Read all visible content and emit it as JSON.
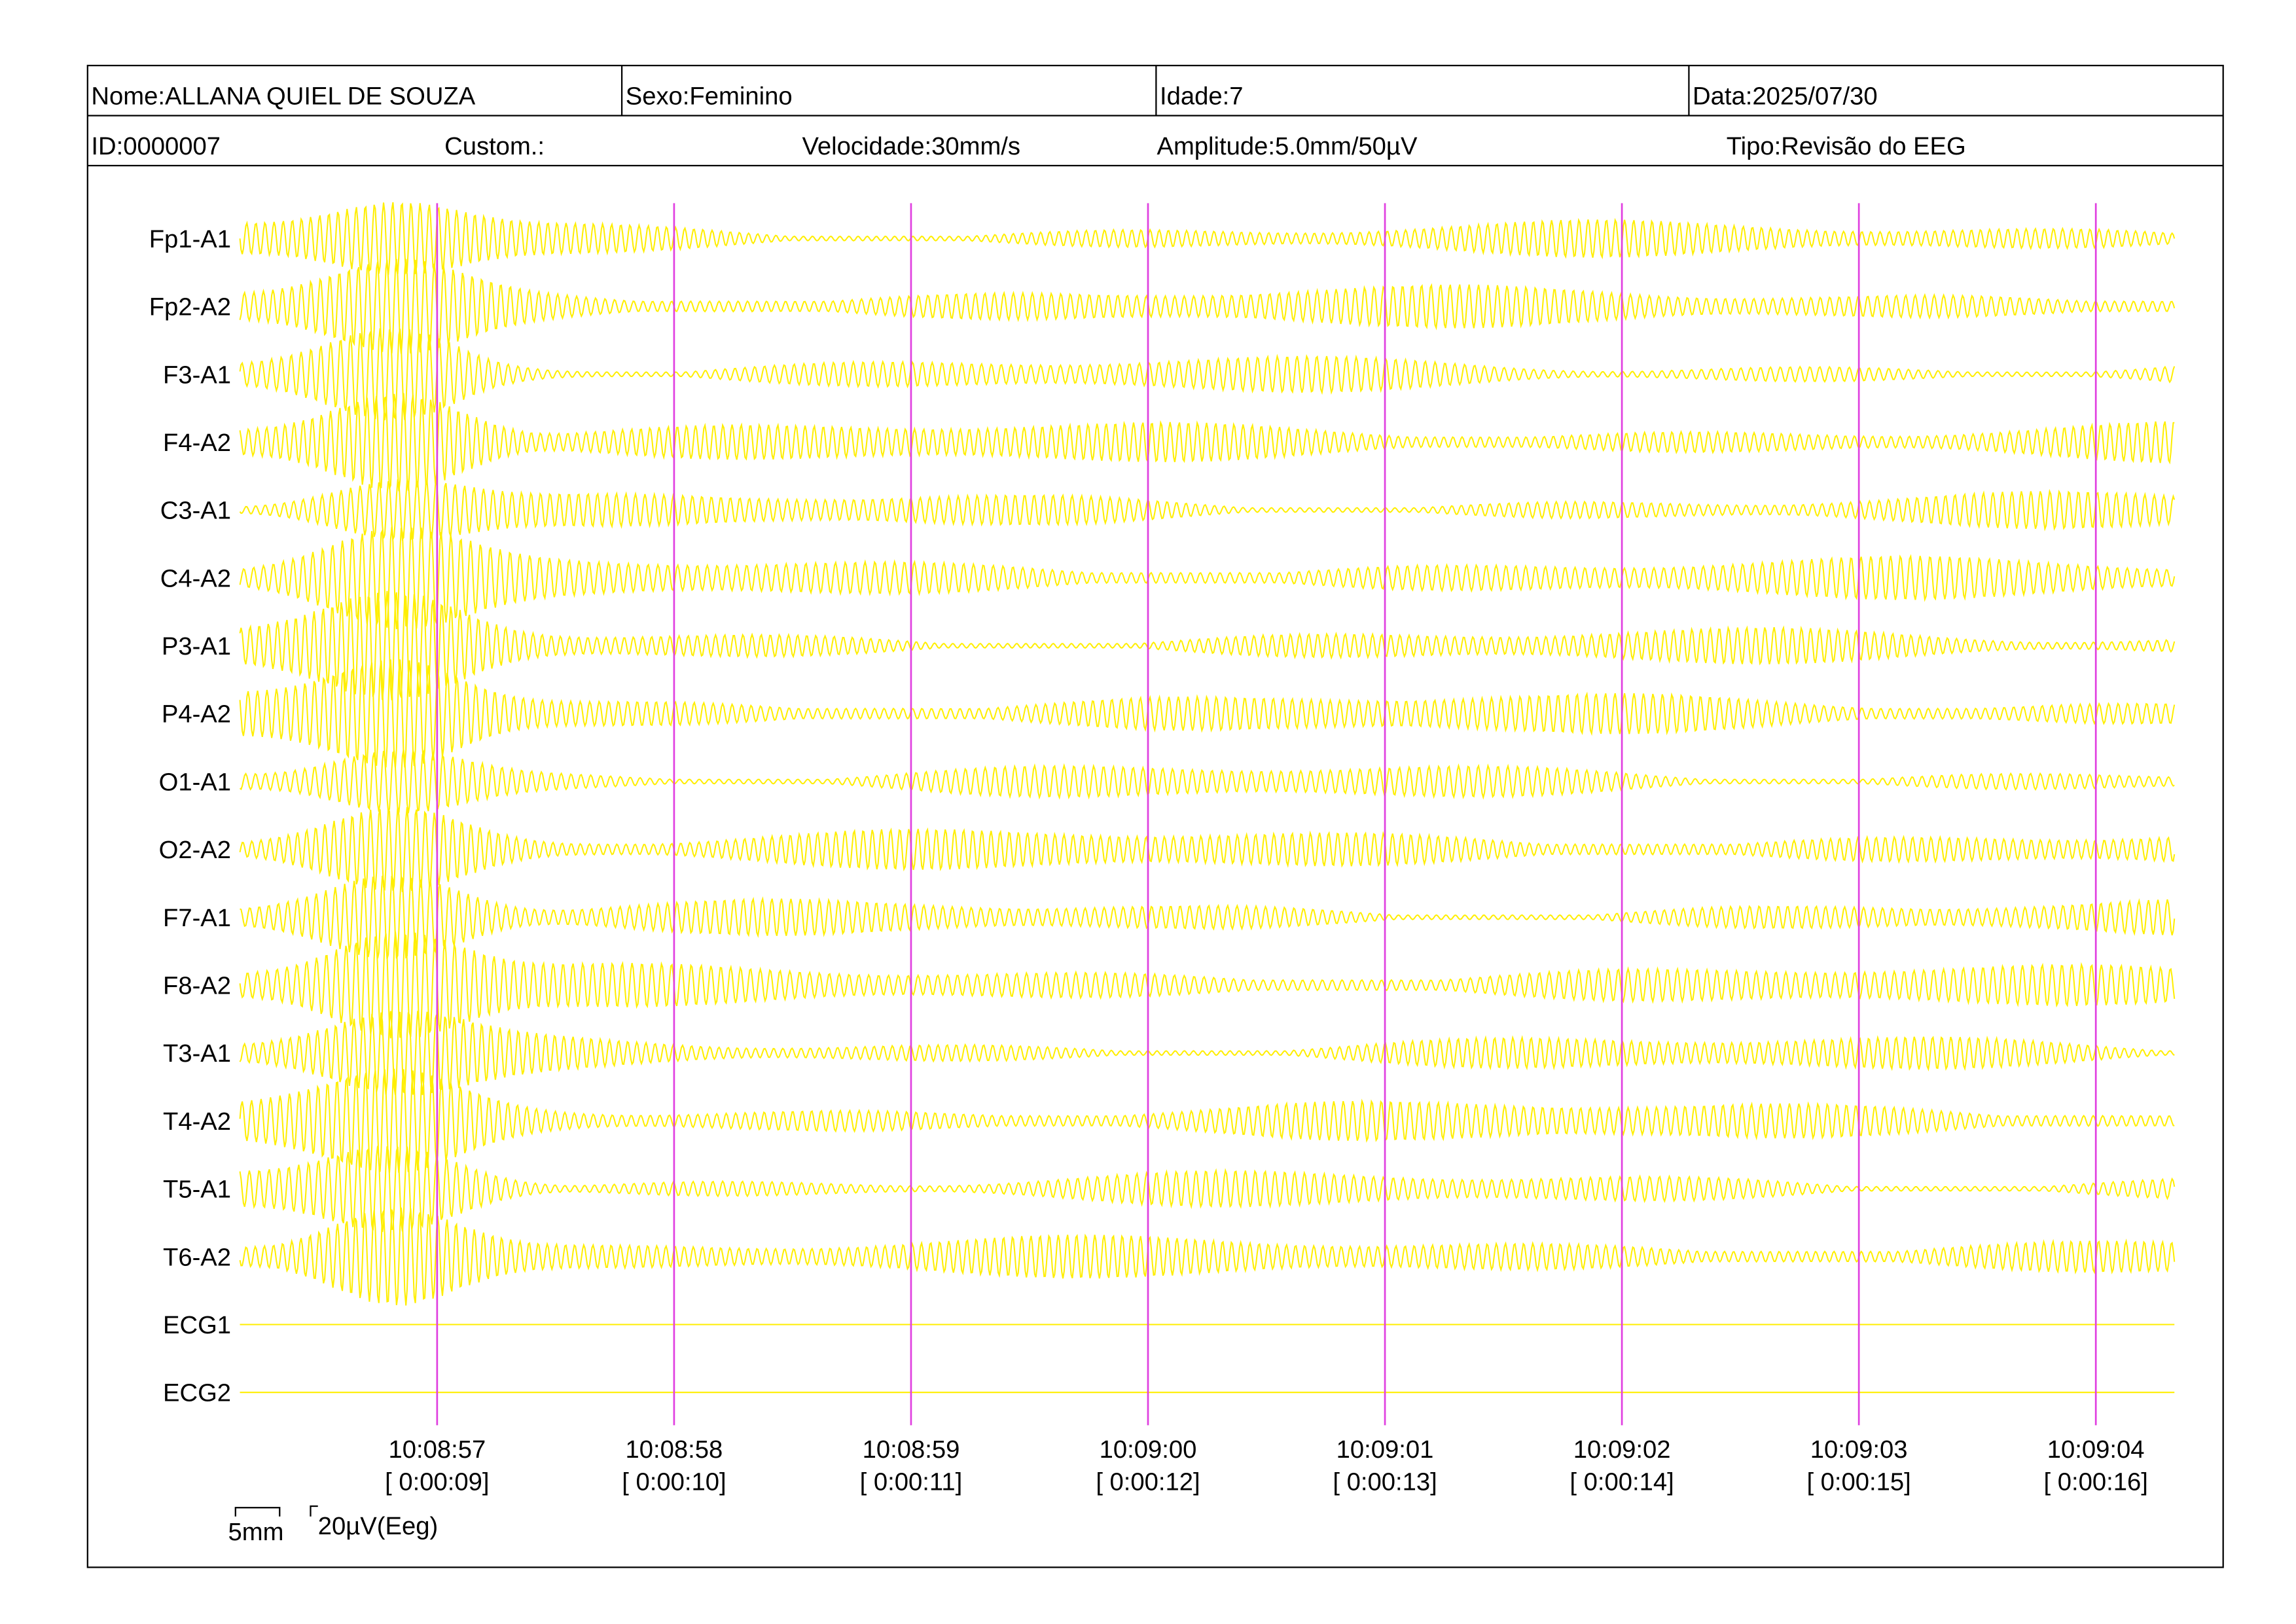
{
  "header": {
    "name": "Nome:ALLANA QUIEL DE SOUZA",
    "sex": "Sexo:Feminino",
    "age": "Idade:7",
    "date": "Data:2025/07/30",
    "id": "ID:0000007",
    "custom": "Custom.:",
    "speed": "Velocidade:30mm/s",
    "amplitude": "Amplitude:5.0mm/50µV",
    "type": "Tipo:Revisão do EEG"
  },
  "channels": [
    "Fp1-A1",
    "Fp2-A2",
    "F3-A1",
    "F4-A2",
    "C3-A1",
    "C4-A2",
    "P3-A1",
    "P4-A2",
    "O1-A1",
    "O2-A2",
    "F7-A1",
    "F8-A2",
    "T3-A1",
    "T4-A2",
    "T5-A1",
    "T6-A2",
    "ECG1",
    "ECG2"
  ],
  "time_marks": [
    {
      "clock": "10:08:57",
      "elapsed": "[ 0:00:09]"
    },
    {
      "clock": "10:08:58",
      "elapsed": "[ 0:00:10]"
    },
    {
      "clock": "10:08:59",
      "elapsed": "[ 0:00:11]"
    },
    {
      "clock": "10:09:00",
      "elapsed": "[ 0:00:12]"
    },
    {
      "clock": "10:09:01",
      "elapsed": "[ 0:00:13]"
    },
    {
      "clock": "10:09:02",
      "elapsed": "[ 0:00:14]"
    },
    {
      "clock": "10:09:03",
      "elapsed": "[ 0:00:15]"
    },
    {
      "clock": "10:09:04",
      "elapsed": "[ 0:00:16]"
    }
  ],
  "scale": {
    "time": "5mm",
    "amplitude": "20µV(Eeg)"
  }
}
